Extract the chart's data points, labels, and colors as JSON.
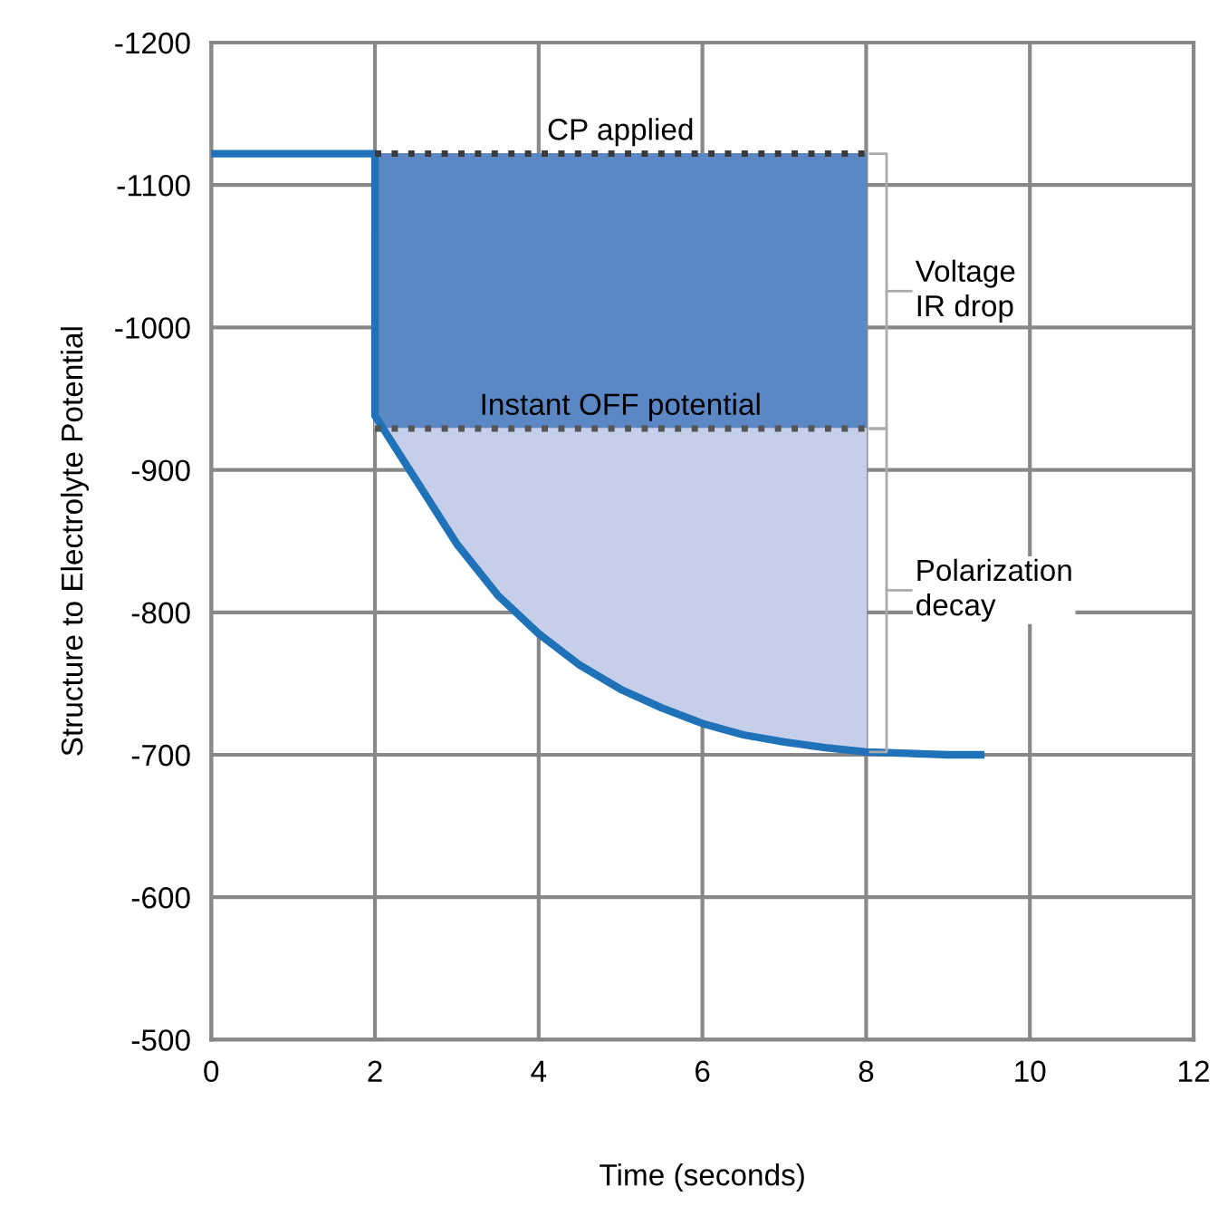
{
  "chart_data": {
    "type": "line",
    "xlabel": "Time (seconds)",
    "ylabel": "Structure to Electrolyte Potential",
    "xlim": [
      0,
      12
    ],
    "xticks": [
      0,
      2,
      4,
      6,
      8,
      10,
      12
    ],
    "ylim": [
      -500,
      -1200
    ],
    "yticks": [
      -1200,
      -1100,
      -1000,
      -900,
      -800,
      -700,
      -600,
      -500
    ],
    "grid": true,
    "series": [
      {
        "color": "#1f72b8",
        "line_style": "solid",
        "x": [
          0,
          2,
          2,
          2.5,
          3,
          3.5,
          4,
          4.5,
          5,
          5.5,
          6,
          6.5,
          7,
          7.5,
          8,
          8.5,
          9,
          9.4
        ],
        "values": [
          -1122,
          -1122,
          -938,
          -893,
          -848,
          -812,
          -785,
          -763,
          -746,
          -733,
          -722,
          -714,
          -709,
          -705,
          -702,
          -701,
          -700,
          -700
        ]
      },
      {
        "color": "#3a3a3a",
        "colors": [
          "#5b87c5",
          "#5b87c5"
        ],
        "line_style": "dotted",
        "x": [
          2,
          8
        ],
        "values": [
          -1122,
          -1122
        ],
        "lower": [
          -1122,
          -1122
        ],
        "upper": [
          -929,
          -929
        ]
      },
      {
        "color": "#555555",
        "colors": [
          "#c5cfea",
          "#c5cfea",
          "#c5cfea",
          "#c5cfea",
          "#c5cfea",
          "#c5cfea",
          "#c5cfea",
          "#c5cfea",
          "#c5cfea",
          "#c5cfea",
          "#c5cfea",
          "#c5cfea",
          "#c5cfea"
        ],
        "line_style": "dotted",
        "x": [
          2,
          2.5,
          3,
          3.5,
          4,
          4.5,
          5,
          5.5,
          6,
          6.5,
          7,
          7.5,
          8
        ],
        "values": [
          -929,
          -929,
          -929,
          -929,
          -929,
          -929,
          -929,
          -929,
          -929,
          -929,
          -929,
          -929,
          -929
        ],
        "lower": [
          -929,
          -929,
          -929,
          -929,
          -929,
          -929,
          -929,
          -929,
          -929,
          -929,
          -929,
          -929,
          -929
        ],
        "upper": [
          -938,
          -893,
          -848,
          -812,
          -785,
          -763,
          -746,
          -733,
          -722,
          -714,
          -709,
          -705,
          -702
        ]
      }
    ],
    "annotations": [
      "CP applied",
      "Instant OFF potential",
      "Voltage\nIR drop",
      "Polarization\ndecay"
    ]
  }
}
